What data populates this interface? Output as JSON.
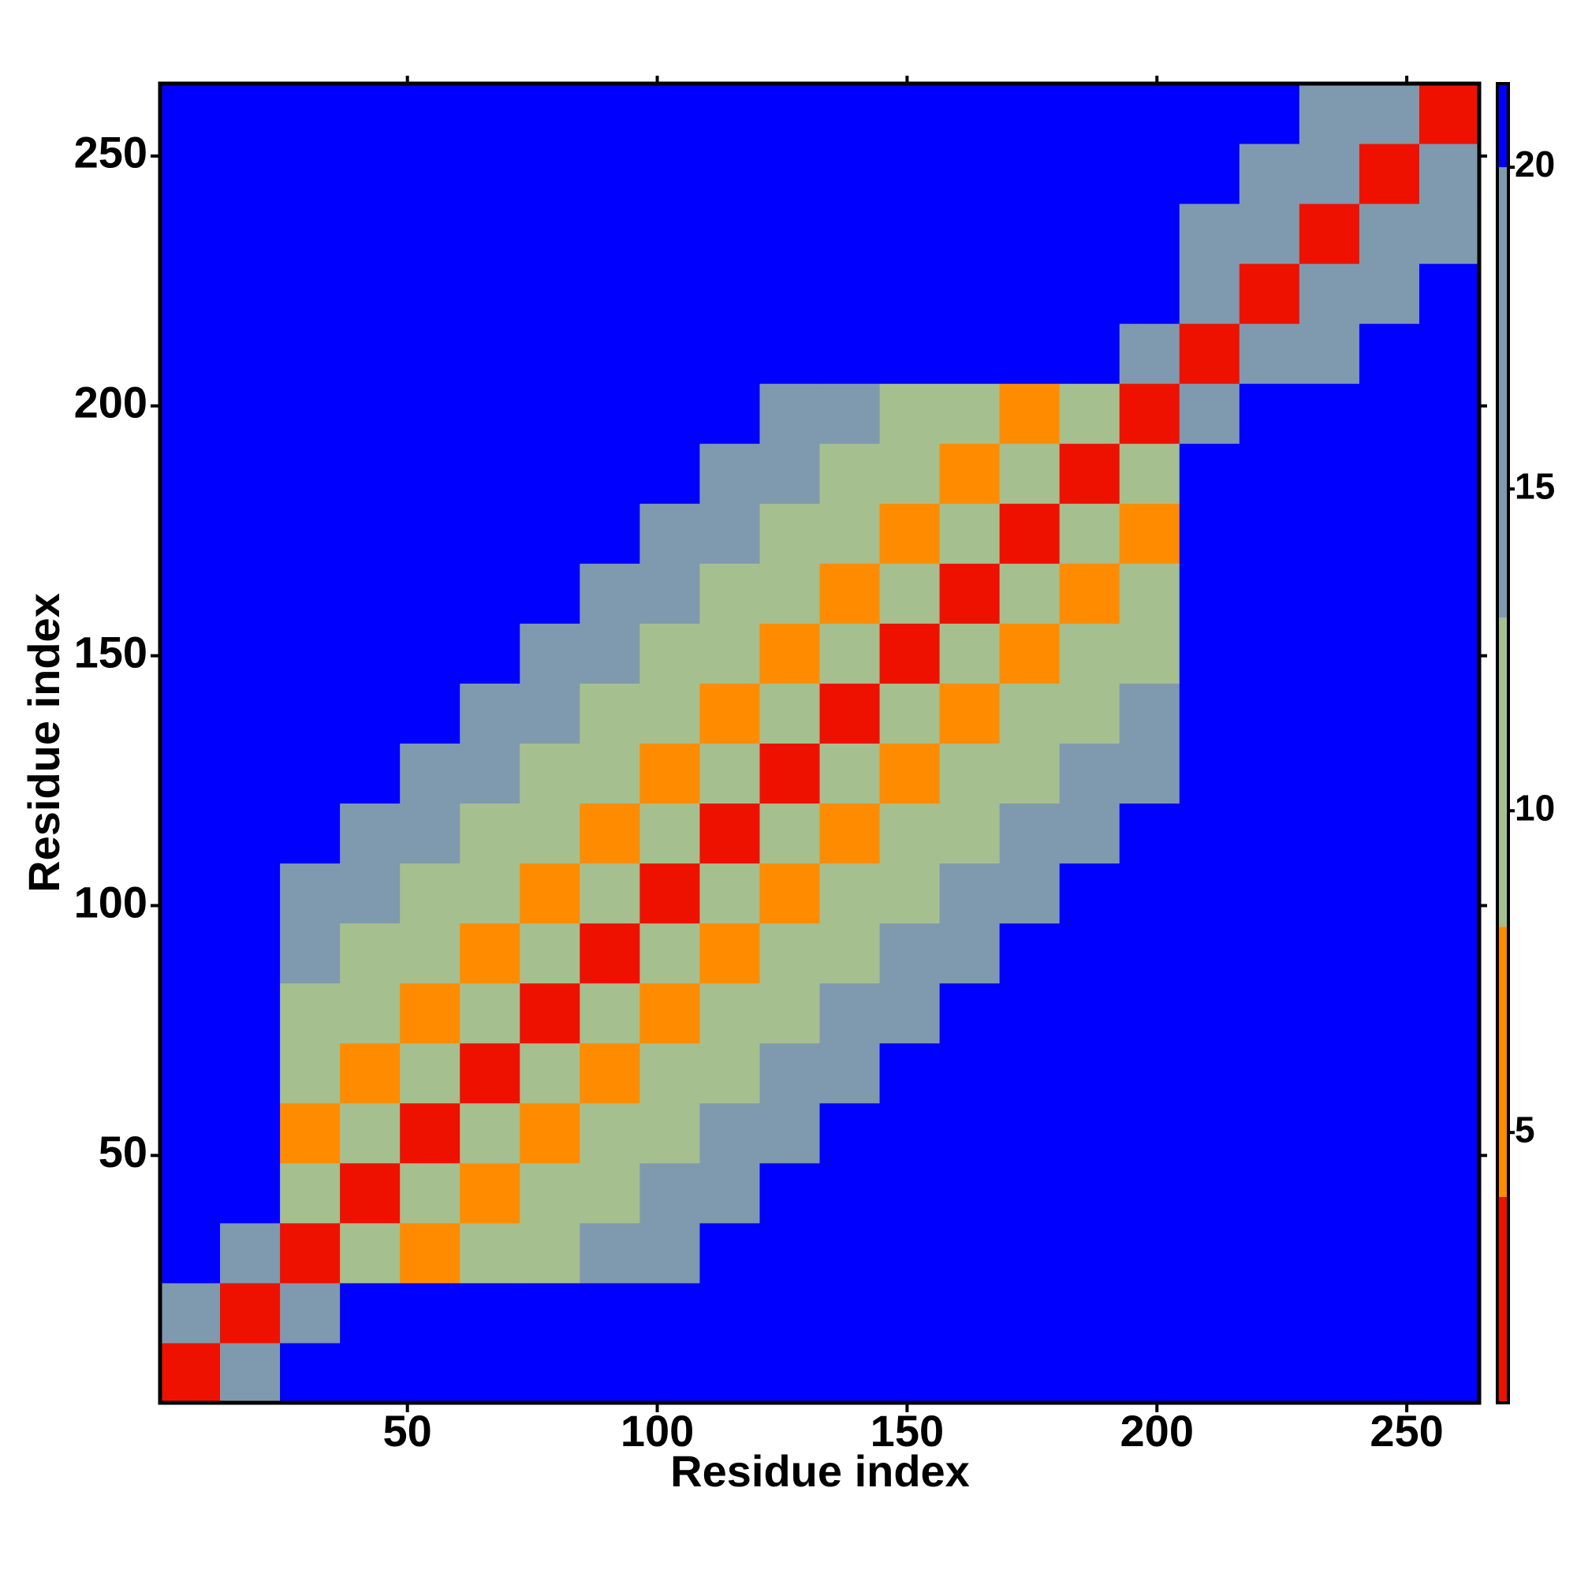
{
  "chart_data": {
    "type": "heatmap",
    "xlabel": "Residue index",
    "ylabel": "Residue index",
    "xbins": [
      0.5,
      12.5,
      24.5,
      36.5,
      48.5,
      60.5,
      72.5,
      84.5,
      96.5,
      108.5,
      120.5,
      132.5,
      144.5,
      156.5,
      168.5,
      180.5,
      192.5,
      204.5,
      216.5,
      228.5,
      240.5,
      252.5,
      264.5
    ],
    "ybins": [
      0.5,
      12.5,
      24.5,
      36.5,
      48.5,
      60.5,
      72.5,
      84.5,
      96.5,
      108.5,
      120.5,
      132.5,
      144.5,
      156.5,
      168.5,
      180.5,
      192.5,
      204.5,
      216.5,
      228.5,
      240.5,
      252.5,
      264.5
    ],
    "xlim": [
      0.5,
      264.5
    ],
    "ylim": [
      0.5,
      264.5
    ],
    "xticks": [
      50,
      100,
      150,
      200,
      250
    ],
    "yticks": [
      50,
      100,
      150,
      200,
      250
    ],
    "values": [
      [
        3,
        15,
        21,
        21,
        21,
        21,
        21,
        21,
        21,
        21,
        21,
        21,
        21,
        21,
        21,
        21,
        21,
        21,
        21,
        21,
        21,
        21
      ],
      [
        15,
        3,
        15,
        21,
        21,
        21,
        21,
        21,
        21,
        21,
        21,
        21,
        21,
        21,
        21,
        21,
        21,
        21,
        21,
        21,
        21,
        21
      ],
      [
        21,
        15,
        3,
        11,
        7,
        12,
        10,
        14,
        17,
        21,
        21,
        21,
        21,
        21,
        21,
        21,
        21,
        21,
        21,
        21,
        21,
        21
      ],
      [
        21,
        21,
        11,
        3,
        11,
        7,
        12,
        10,
        14,
        17,
        21,
        21,
        21,
        21,
        21,
        21,
        21,
        21,
        21,
        21,
        21,
        21
      ],
      [
        21,
        21,
        7,
        11,
        3,
        11,
        7,
        12,
        10,
        14,
        17,
        21,
        21,
        21,
        21,
        21,
        21,
        21,
        21,
        21,
        21,
        21
      ],
      [
        21,
        21,
        12,
        7,
        11,
        3,
        11,
        7,
        12,
        10,
        14,
        17,
        21,
        21,
        21,
        21,
        21,
        21,
        21,
        21,
        21,
        21
      ],
      [
        21,
        21,
        10,
        12,
        7,
        11,
        3,
        11,
        7,
        12,
        10,
        14,
        17,
        21,
        21,
        21,
        21,
        21,
        21,
        21,
        21,
        21
      ],
      [
        21,
        21,
        14,
        10,
        12,
        7,
        11,
        3,
        11,
        7,
        12,
        10,
        14,
        17,
        21,
        21,
        21,
        21,
        21,
        21,
        21,
        21
      ],
      [
        21,
        21,
        17,
        14,
        10,
        12,
        7,
        11,
        3,
        11,
        7,
        12,
        10,
        14,
        17,
        21,
        21,
        21,
        21,
        21,
        21,
        21
      ],
      [
        21,
        21,
        21,
        17,
        14,
        10,
        12,
        7,
        11,
        3,
        11,
        7,
        12,
        10,
        14,
        17,
        21,
        21,
        21,
        21,
        21,
        21
      ],
      [
        21,
        21,
        21,
        21,
        17,
        14,
        10,
        12,
        7,
        11,
        3,
        11,
        7,
        12,
        10,
        14,
        17,
        21,
        21,
        21,
        21,
        21
      ],
      [
        21,
        21,
        21,
        21,
        21,
        17,
        14,
        10,
        12,
        7,
        11,
        3,
        11,
        7,
        12,
        10,
        14,
        21,
        21,
        21,
        21,
        21
      ],
      [
        21,
        21,
        21,
        21,
        21,
        21,
        17,
        14,
        10,
        12,
        7,
        11,
        3,
        11,
        7,
        12,
        10,
        21,
        21,
        21,
        21,
        21
      ],
      [
        21,
        21,
        21,
        21,
        21,
        21,
        21,
        17,
        14,
        10,
        12,
        7,
        11,
        3,
        11,
        7,
        12,
        21,
        21,
        21,
        21,
        21
      ],
      [
        21,
        21,
        21,
        21,
        21,
        21,
        21,
        21,
        17,
        14,
        10,
        12,
        7,
        11,
        3,
        11,
        7,
        21,
        21,
        21,
        21,
        21
      ],
      [
        21,
        21,
        21,
        21,
        21,
        21,
        21,
        21,
        21,
        17,
        14,
        10,
        12,
        7,
        11,
        3,
        11,
        21,
        21,
        21,
        21,
        21
      ],
      [
        21,
        21,
        21,
        21,
        21,
        21,
        21,
        21,
        21,
        21,
        17,
        14,
        10,
        12,
        7,
        11,
        3,
        15,
        21,
        21,
        21,
        21
      ],
      [
        21,
        21,
        21,
        21,
        21,
        21,
        21,
        21,
        21,
        21,
        21,
        21,
        21,
        21,
        21,
        21,
        15,
        3,
        15,
        18,
        21,
        21
      ],
      [
        21,
        21,
        21,
        21,
        21,
        21,
        21,
        21,
        21,
        21,
        21,
        21,
        21,
        21,
        21,
        21,
        21,
        15,
        3,
        15,
        18,
        21
      ],
      [
        21,
        21,
        21,
        21,
        21,
        21,
        21,
        21,
        21,
        21,
        21,
        21,
        21,
        21,
        21,
        21,
        21,
        18,
        15,
        3,
        15,
        18
      ],
      [
        21,
        21,
        21,
        21,
        21,
        21,
        21,
        21,
        21,
        21,
        21,
        21,
        21,
        21,
        21,
        21,
        21,
        21,
        18,
        15,
        3,
        15
      ],
      [
        21,
        21,
        21,
        21,
        21,
        21,
        21,
        21,
        21,
        21,
        21,
        21,
        21,
        21,
        21,
        21,
        21,
        21,
        21,
        18,
        15,
        3
      ]
    ],
    "colorbar_lim": [
      0.8,
      21.3
    ],
    "colorbar_ticks": [
      5,
      10,
      15,
      20
    ],
    "color_levels": [
      {
        "upto": 4,
        "color": "#ee1100"
      },
      {
        "upto": 8.2,
        "color": "#ff8c00"
      },
      {
        "upto": 13,
        "color": "#a6bf8f"
      },
      {
        "upto": 20,
        "color": "#7f9aae"
      },
      {
        "upto": 21.3,
        "color": "#0000ff"
      }
    ]
  }
}
